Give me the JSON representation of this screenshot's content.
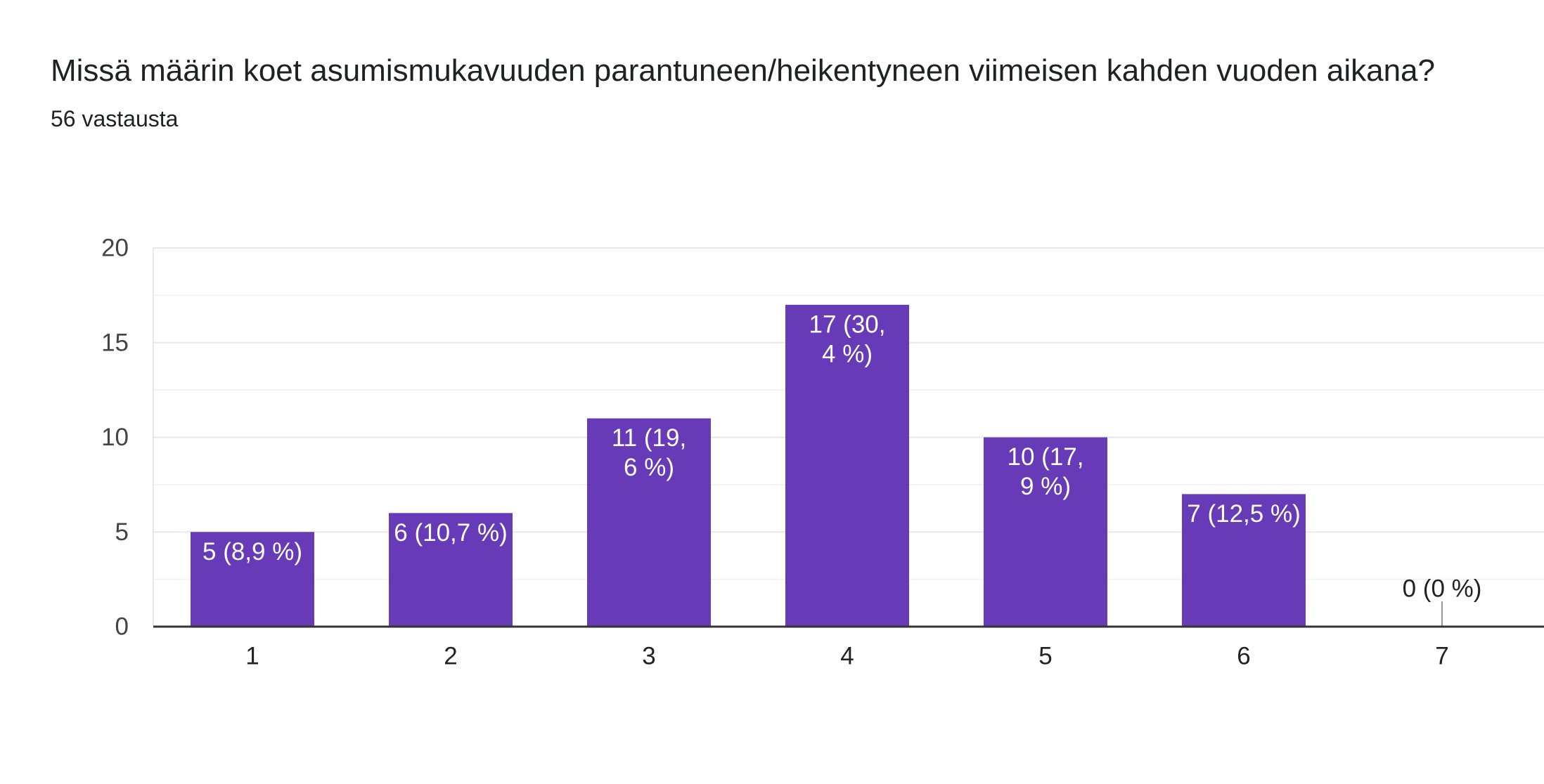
{
  "header": {
    "title": "Missä määrin koet asumismukavuuden parantuneen/heikentyneen viimeisen kahden vuoden aikana?",
    "response_count": "56 vastausta"
  },
  "colors": {
    "bar": "#673AB7",
    "label_inside": "#ffffff",
    "label_outside": "#222222",
    "grid": "#e8e8e8",
    "axis": "#333333"
  },
  "chart_data": {
    "type": "bar",
    "title": "Missä määrin koet asumismukavuuden parantuneen/heikentyneen viimeisen kahden vuoden aikana?",
    "xlabel": "",
    "ylabel": "",
    "categories": [
      "1",
      "2",
      "3",
      "4",
      "5",
      "6",
      "7"
    ],
    "values": [
      5,
      6,
      11,
      17,
      10,
      7,
      0
    ],
    "data_labels": [
      [
        "5 (8,9 %)"
      ],
      [
        "6 (10,7 %)"
      ],
      [
        "11 (19,",
        "6 %)"
      ],
      [
        "17 (30,",
        "4 %)"
      ],
      [
        "10 (17,",
        "9 %)"
      ],
      [
        "7 (12,5 %)"
      ],
      [
        "0 (0 %)"
      ]
    ],
    "ylim": [
      0,
      20
    ],
    "yticks": [
      0,
      5,
      10,
      15,
      20
    ],
    "grid": true,
    "legend": "none"
  }
}
